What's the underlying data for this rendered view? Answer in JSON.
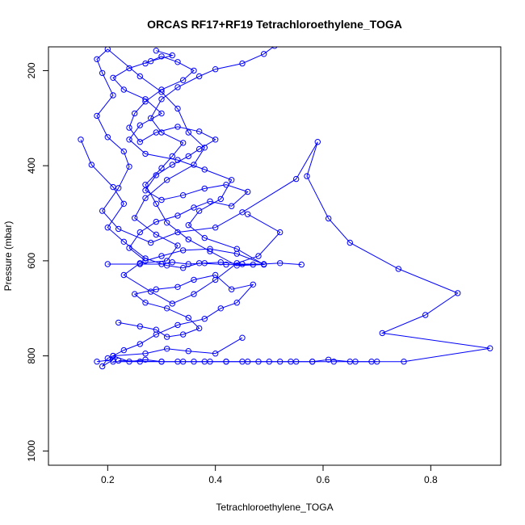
{
  "chart_data": {
    "type": "line",
    "title": "ORCAS RF17+RF19 Tetrachloroethylene_TOGA",
    "xlabel": "Tetrachloroethylene_TOGA",
    "ylabel": "Pressure (mbar)",
    "xlim": [
      0.09,
      0.93
    ],
    "ylim": [
      1030,
      150
    ],
    "y_reversed": true,
    "grid": false,
    "legend": "none",
    "x_ticks": [
      0.2,
      0.4,
      0.6,
      0.8
    ],
    "x_tick_labels": [
      "0.2",
      "0.4",
      "0.6",
      "0.8"
    ],
    "y_ticks": [
      200,
      400,
      600,
      800,
      1000
    ],
    "y_tick_labels": [
      "200",
      "400",
      "600",
      "800",
      "1000"
    ],
    "color": "#0000ff",
    "series": [
      {
        "points": [
          [
            0.18,
            812
          ],
          [
            0.21,
            808
          ],
          [
            0.19,
            822
          ],
          [
            0.2,
            805
          ],
          [
            0.21,
            800
          ],
          [
            0.24,
            812
          ],
          [
            0.27,
            808
          ],
          [
            0.3,
            812
          ],
          [
            0.33,
            812
          ],
          [
            0.36,
            812
          ],
          [
            0.39,
            812
          ],
          [
            0.42,
            812
          ],
          [
            0.45,
            812
          ],
          [
            0.48,
            812
          ],
          [
            0.52,
            812
          ],
          [
            0.55,
            812
          ],
          [
            0.58,
            812
          ],
          [
            0.61,
            808
          ],
          [
            0.65,
            812
          ],
          [
            0.69,
            812
          ],
          [
            0.75,
            812
          ],
          [
            0.91,
            784
          ],
          [
            0.71,
            752
          ],
          [
            0.79,
            714
          ],
          [
            0.85,
            668
          ],
          [
            0.74,
            617
          ],
          [
            0.65,
            562
          ],
          [
            0.61,
            511
          ],
          [
            0.57,
            422
          ],
          [
            0.59,
            350
          ],
          [
            0.55,
            428
          ],
          [
            0.45,
            498
          ],
          [
            0.4,
            530
          ],
          [
            0.33,
            540
          ],
          [
            0.28,
            562
          ],
          [
            0.22,
            533
          ],
          [
            0.19,
            495
          ],
          [
            0.22,
            447
          ],
          [
            0.24,
            402
          ],
          [
            0.23,
            370
          ],
          [
            0.2,
            340
          ],
          [
            0.18,
            295
          ],
          [
            0.21,
            252
          ],
          [
            0.19,
            205
          ],
          [
            0.18,
            176
          ],
          [
            0.2,
            155
          ],
          [
            0.26,
            212
          ],
          [
            0.3,
            245
          ],
          [
            0.33,
            280
          ],
          [
            0.35,
            330
          ],
          [
            0.38,
            362
          ],
          [
            0.36,
            398
          ],
          [
            0.31,
            430
          ],
          [
            0.27,
            468
          ],
          [
            0.25,
            510
          ],
          [
            0.29,
            545
          ],
          [
            0.33,
            568
          ],
          [
            0.31,
            600
          ],
          [
            0.26,
            605
          ],
          [
            0.23,
            630
          ],
          [
            0.28,
            665
          ],
          [
            0.32,
            690
          ],
          [
            0.36,
            670
          ],
          [
            0.4,
            640
          ],
          [
            0.44,
            605
          ],
          [
            0.48,
            590
          ],
          [
            0.52,
            540
          ],
          [
            0.46,
            502
          ]
        ]
      },
      {
        "points": [
          [
            0.51,
            148
          ],
          [
            0.49,
            165
          ],
          [
            0.45,
            185
          ],
          [
            0.4,
            197
          ],
          [
            0.37,
            212
          ],
          [
            0.33,
            235
          ],
          [
            0.3,
            260
          ],
          [
            0.28,
            300
          ],
          [
            0.3,
            330
          ],
          [
            0.34,
            352
          ],
          [
            0.32,
            380
          ],
          [
            0.3,
            405
          ],
          [
            0.27,
            440
          ],
          [
            0.29,
            480
          ],
          [
            0.31,
            520
          ],
          [
            0.35,
            555
          ],
          [
            0.39,
            580
          ],
          [
            0.44,
            610
          ],
          [
            0.49,
            608
          ],
          [
            0.44,
            575
          ],
          [
            0.38,
            552
          ],
          [
            0.35,
            525
          ],
          [
            0.37,
            495
          ],
          [
            0.41,
            470
          ],
          [
            0.43,
            430
          ],
          [
            0.38,
            408
          ],
          [
            0.33,
            388
          ],
          [
            0.27,
            375
          ],
          [
            0.24,
            345
          ],
          [
            0.26,
            315
          ],
          [
            0.3,
            290
          ],
          [
            0.27,
            260
          ],
          [
            0.23,
            240
          ],
          [
            0.21,
            215
          ],
          [
            0.24,
            195
          ],
          [
            0.28,
            180
          ],
          [
            0.32,
            168
          ],
          [
            0.29,
            158
          ]
        ]
      },
      {
        "points": [
          [
            0.2,
            607
          ],
          [
            0.26,
            607
          ],
          [
            0.3,
            607
          ],
          [
            0.32,
            603
          ],
          [
            0.35,
            607
          ],
          [
            0.38,
            605
          ],
          [
            0.41,
            603
          ],
          [
            0.45,
            607
          ],
          [
            0.49,
            607
          ],
          [
            0.44,
            585
          ],
          [
            0.39,
            575
          ],
          [
            0.34,
            578
          ],
          [
            0.3,
            590
          ],
          [
            0.27,
            600
          ],
          [
            0.24,
            573
          ],
          [
            0.26,
            540
          ],
          [
            0.29,
            518
          ],
          [
            0.33,
            505
          ],
          [
            0.36,
            488
          ],
          [
            0.39,
            475
          ],
          [
            0.43,
            485
          ],
          [
            0.46,
            455
          ],
          [
            0.42,
            440
          ],
          [
            0.38,
            448
          ],
          [
            0.34,
            462
          ],
          [
            0.3,
            472
          ],
          [
            0.27,
            452
          ],
          [
            0.29,
            420
          ],
          [
            0.32,
            398
          ],
          [
            0.35,
            380
          ],
          [
            0.37,
            365
          ],
          [
            0.4,
            345
          ],
          [
            0.37,
            328
          ],
          [
            0.33,
            318
          ],
          [
            0.29,
            330
          ],
          [
            0.26,
            350
          ],
          [
            0.24,
            320
          ],
          [
            0.25,
            290
          ],
          [
            0.27,
            265
          ],
          [
            0.3,
            240
          ],
          [
            0.34,
            220
          ],
          [
            0.36,
            200
          ],
          [
            0.33,
            182
          ],
          [
            0.3,
            170
          ],
          [
            0.27,
            185
          ]
        ]
      },
      {
        "points": [
          [
            0.22,
            730
          ],
          [
            0.26,
            738
          ],
          [
            0.29,
            745
          ],
          [
            0.31,
            760
          ],
          [
            0.34,
            755
          ],
          [
            0.37,
            742
          ],
          [
            0.35,
            720
          ],
          [
            0.31,
            700
          ],
          [
            0.27,
            688
          ],
          [
            0.25,
            670
          ],
          [
            0.29,
            660
          ],
          [
            0.33,
            655
          ],
          [
            0.36,
            640
          ],
          [
            0.4,
            630
          ],
          [
            0.43,
            660
          ],
          [
            0.47,
            650
          ],
          [
            0.44,
            688
          ],
          [
            0.41,
            700
          ],
          [
            0.38,
            722
          ],
          [
            0.33,
            735
          ],
          [
            0.29,
            755
          ],
          [
            0.26,
            775
          ],
          [
            0.23,
            788
          ],
          [
            0.21,
            800
          ],
          [
            0.27,
            795
          ],
          [
            0.31,
            785
          ],
          [
            0.35,
            790
          ],
          [
            0.4,
            795
          ],
          [
            0.45,
            762
          ]
        ]
      },
      {
        "points": [
          [
            0.15,
            345
          ],
          [
            0.17,
            398
          ],
          [
            0.21,
            445
          ],
          [
            0.23,
            480
          ],
          [
            0.2,
            530
          ],
          [
            0.23,
            560
          ],
          [
            0.27,
            595
          ],
          [
            0.31,
            610
          ],
          [
            0.34,
            615
          ],
          [
            0.37,
            605
          ],
          [
            0.42,
            608
          ],
          [
            0.47,
            608
          ],
          [
            0.52,
            605
          ],
          [
            0.56,
            608
          ]
        ]
      },
      {
        "points": [
          [
            0.22,
            810
          ],
          [
            0.3,
            812
          ],
          [
            0.38,
            812
          ],
          [
            0.46,
            812
          ],
          [
            0.54,
            812
          ],
          [
            0.62,
            812
          ],
          [
            0.7,
            812
          ],
          [
            0.66,
            812
          ],
          [
            0.58,
            812
          ],
          [
            0.5,
            812
          ],
          [
            0.42,
            812
          ],
          [
            0.34,
            812
          ],
          [
            0.26,
            812
          ],
          [
            0.21,
            812
          ]
        ]
      }
    ]
  }
}
